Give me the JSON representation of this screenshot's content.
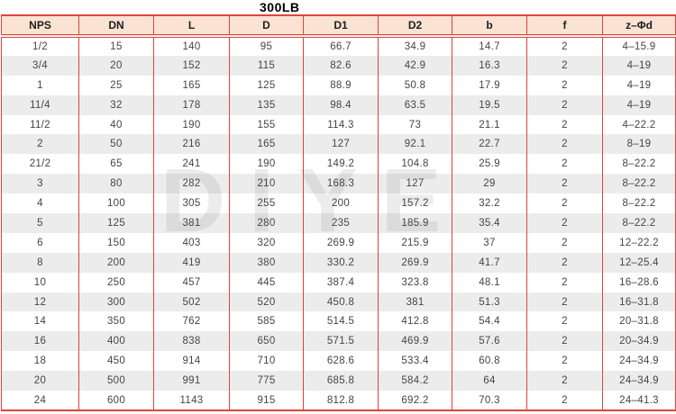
{
  "title": "300LB",
  "watermark": "DIYE",
  "colors": {
    "accent": "#e0423c",
    "header_bg": "#fae3d3",
    "row_alt": "#ececec",
    "text": "#454545"
  },
  "table": {
    "columns": [
      "NPS",
      "DN",
      "L",
      "D",
      "D1",
      "D2",
      "b",
      "f",
      "z–Φd"
    ],
    "rows": [
      [
        "1/2",
        "15",
        "140",
        "95",
        "66.7",
        "34.9",
        "14.7",
        "2",
        "4–15.9"
      ],
      [
        "3/4",
        "20",
        "152",
        "115",
        "82.6",
        "42.9",
        "16.3",
        "2",
        "4–19"
      ],
      [
        "1",
        "25",
        "165",
        "125",
        "88.9",
        "50.8",
        "17.9",
        "2",
        "4–19"
      ],
      [
        "11/4",
        "32",
        "178",
        "135",
        "98.4",
        "63.5",
        "19.5",
        "2",
        "4–19"
      ],
      [
        "11/2",
        "40",
        "190",
        "155",
        "114.3",
        "73",
        "21.1",
        "2",
        "4–22.2"
      ],
      [
        "2",
        "50",
        "216",
        "165",
        "127",
        "92.1",
        "22.7",
        "2",
        "8–19"
      ],
      [
        "21/2",
        "65",
        "241",
        "190",
        "149.2",
        "104.8",
        "25.9",
        "2",
        "8–22.2"
      ],
      [
        "3",
        "80",
        "282",
        "210",
        "168.3",
        "127",
        "29",
        "2",
        "8–22.2"
      ],
      [
        "4",
        "100",
        "305",
        "255",
        "200",
        "157.2",
        "32.2",
        "2",
        "8–22.2"
      ],
      [
        "5",
        "125",
        "381",
        "280",
        "235",
        "185.9",
        "35.4",
        "2",
        "8–22.2"
      ],
      [
        "6",
        "150",
        "403",
        "320",
        "269.9",
        "215.9",
        "37",
        "2",
        "12–22.2"
      ],
      [
        "8",
        "200",
        "419",
        "380",
        "330.2",
        "269.9",
        "41.7",
        "2",
        "12–25.4"
      ],
      [
        "10",
        "250",
        "457",
        "445",
        "387.4",
        "323.8",
        "48.1",
        "2",
        "16–28.6"
      ],
      [
        "12",
        "300",
        "502",
        "520",
        "450.8",
        "381",
        "51.3",
        "2",
        "16–31.8"
      ],
      [
        "14",
        "350",
        "762",
        "585",
        "514.5",
        "412.8",
        "54.4",
        "2",
        "20–31.8"
      ],
      [
        "16",
        "400",
        "838",
        "650",
        "571.5",
        "469.9",
        "57.6",
        "2",
        "20–34.9"
      ],
      [
        "18",
        "450",
        "914",
        "710",
        "628.6",
        "533.4",
        "60.8",
        "2",
        "24–34.9"
      ],
      [
        "20",
        "500",
        "991",
        "775",
        "685.8",
        "584.2",
        "64",
        "2",
        "24–34.9"
      ],
      [
        "24",
        "600",
        "1143",
        "915",
        "812.8",
        "692.2",
        "70.3",
        "2",
        "24–41.3"
      ]
    ]
  }
}
